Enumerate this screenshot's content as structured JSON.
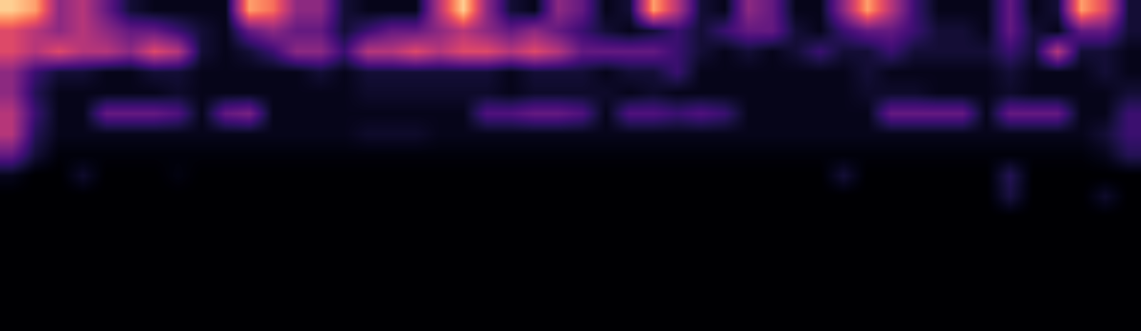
{
  "chart_data": {
    "type": "heatmap",
    "tick_labels": false,
    "clim": [
      0,
      1
    ],
    "cells": [
      [
        0.9,
        0.8,
        0.4,
        0.5,
        0.3,
        0.1,
        0.05,
        0.05,
        0.05,
        0.05,
        0.8,
        0.7,
        0.4,
        0.4,
        0.1,
        0.05,
        0.05,
        0.05,
        0.5,
        0.9,
        0.4,
        0.1,
        0.05,
        0.4,
        0.3,
        0.05,
        0.1,
        0.8,
        0.5,
        0.1,
        0.05,
        0.4,
        0.3,
        0.05,
        0.05,
        0.4,
        0.8,
        0.5,
        0.2,
        0.05,
        0.05,
        0.05,
        0.3,
        0.05,
        0.1,
        0.8,
        0.6,
        0.1
      ],
      [
        0.6,
        0.5,
        0.4,
        0.5,
        0.4,
        0.3,
        0.3,
        0.2,
        0.1,
        0.05,
        0.3,
        0.4,
        0.3,
        0.3,
        0.1,
        0.2,
        0.3,
        0.3,
        0.4,
        0.5,
        0.4,
        0.3,
        0.4,
        0.3,
        0.2,
        0.1,
        0.05,
        0.1,
        0.2,
        0.1,
        0.2,
        0.3,
        0.3,
        0.1,
        0.05,
        0.2,
        0.3,
        0.3,
        0.2,
        0.1,
        0.1,
        0.05,
        0.3,
        0.1,
        0.05,
        0.3,
        0.3,
        0.1
      ],
      [
        0.6,
        0.5,
        0.6,
        0.5,
        0.5,
        0.4,
        0.6,
        0.5,
        0.1,
        0.05,
        0.1,
        0.2,
        0.4,
        0.4,
        0.2,
        0.5,
        0.5,
        0.6,
        0.5,
        0.6,
        0.6,
        0.5,
        0.6,
        0.5,
        0.3,
        0.3,
        0.3,
        0.3,
        0.2,
        0.1,
        0.05,
        0.1,
        0.05,
        0.1,
        0.2,
        0.1,
        0.1,
        0.2,
        0.1,
        0.1,
        0.1,
        0.1,
        0.2,
        0.1,
        0.5,
        0.1,
        0.1,
        0.05
      ],
      [
        0.4,
        0.2,
        0.1,
        0.1,
        0.05,
        0.05,
        0.1,
        0.1,
        0.05,
        0.05,
        0.05,
        0.05,
        0.05,
        0.1,
        0.05,
        0.1,
        0.1,
        0.1,
        0.1,
        0.1,
        0.1,
        0.05,
        0.1,
        0.1,
        0.1,
        0.05,
        0.1,
        0.1,
        0.2,
        0.05,
        0.05,
        0.05,
        0.05,
        0.05,
        0.05,
        0.05,
        0.1,
        0.05,
        0.05,
        0.05,
        0.05,
        0.05,
        0.1,
        0.05,
        0.05,
        0.05,
        0.1,
        0.05
      ],
      [
        0.4,
        0.15,
        0.05,
        0.05,
        0.05,
        0.05,
        0.05,
        0.08,
        0.05,
        0.05,
        0.05,
        0.05,
        0.05,
        0.05,
        0.05,
        0.08,
        0.08,
        0.08,
        0.08,
        0.08,
        0.08,
        0.05,
        0.08,
        0.08,
        0.08,
        0.08,
        0.05,
        0.08,
        0.05,
        0.05,
        0.05,
        0.05,
        0.05,
        0.05,
        0.05,
        0.05,
        0.08,
        0.08,
        0.08,
        0.05,
        0.05,
        0.05,
        0.08,
        0.05,
        0.05,
        0.05,
        0.05,
        0.1
      ],
      [
        0.5,
        0.2,
        0.05,
        0.05,
        0.3,
        0.3,
        0.3,
        0.25,
        0.05,
        0.3,
        0.35,
        0.05,
        0.05,
        0.05,
        0.05,
        0.05,
        0.05,
        0.05,
        0.05,
        0.05,
        0.25,
        0.25,
        0.3,
        0.3,
        0.25,
        0.05,
        0.25,
        0.25,
        0.2,
        0.25,
        0.2,
        0.05,
        0.05,
        0.05,
        0.05,
        0.05,
        0.05,
        0.3,
        0.3,
        0.3,
        0.3,
        0.05,
        0.3,
        0.3,
        0.3,
        0.05,
        0.05,
        0.2
      ],
      [
        0.5,
        0.15,
        0.05,
        0.05,
        0.05,
        0.05,
        0.05,
        0.05,
        0.05,
        0.05,
        0.05,
        0.05,
        0.05,
        0.05,
        0.05,
        0.08,
        0.08,
        0.08,
        0.05,
        0.05,
        0.05,
        0.05,
        0.05,
        0.05,
        0.05,
        0.05,
        0.05,
        0.05,
        0.05,
        0.05,
        0.05,
        0.05,
        0.05,
        0.05,
        0.05,
        0.05,
        0.05,
        0.05,
        0.05,
        0.05,
        0.05,
        0.05,
        0.05,
        0.05,
        0.05,
        0.05,
        0.1,
        0.2
      ],
      [
        0.3,
        0.1,
        0.02,
        0.02,
        0.02,
        0.02,
        0.02,
        0.02,
        0.02,
        0.02,
        0.02,
        0.02,
        0.02,
        0.02,
        0.02,
        0.02,
        0.02,
        0.02,
        0.02,
        0.02,
        0.02,
        0.02,
        0.02,
        0.02,
        0.02,
        0.02,
        0.02,
        0.02,
        0.02,
        0.02,
        0.02,
        0.02,
        0.02,
        0.02,
        0.02,
        0.02,
        0.02,
        0.02,
        0.02,
        0.02,
        0.02,
        0.02,
        0.02,
        0.02,
        0.02,
        0.02,
        0.05,
        0.15
      ],
      [
        0.05,
        0,
        0,
        0.08,
        0,
        0,
        0,
        0.03,
        0,
        0,
        0,
        0,
        0,
        0,
        0,
        0,
        0,
        0,
        0,
        0,
        0,
        0,
        0,
        0,
        0,
        0,
        0,
        0,
        0,
        0,
        0,
        0,
        0,
        0,
        0,
        0.1,
        0,
        0,
        0,
        0,
        0,
        0,
        0.15,
        0,
        0,
        0,
        0,
        0
      ],
      [
        0,
        0,
        0,
        0,
        0,
        0,
        0,
        0,
        0,
        0,
        0,
        0,
        0,
        0,
        0,
        0,
        0,
        0,
        0,
        0,
        0,
        0,
        0,
        0,
        0,
        0,
        0,
        0,
        0,
        0,
        0,
        0,
        0,
        0,
        0,
        0,
        0,
        0,
        0,
        0,
        0,
        0,
        0.12,
        0,
        0,
        0,
        0.08,
        0
      ],
      [
        0,
        0,
        0,
        0,
        0,
        0,
        0,
        0,
        0,
        0,
        0,
        0,
        0,
        0,
        0,
        0,
        0,
        0,
        0,
        0,
        0,
        0,
        0,
        0,
        0,
        0,
        0,
        0,
        0,
        0,
        0,
        0,
        0,
        0,
        0,
        0,
        0,
        0,
        0,
        0,
        0,
        0,
        0,
        0,
        0,
        0,
        0,
        0
      ],
      [
        0,
        0,
        0,
        0,
        0,
        0,
        0,
        0,
        0,
        0,
        0,
        0,
        0,
        0,
        0,
        0,
        0,
        0,
        0,
        0,
        0,
        0,
        0,
        0,
        0,
        0,
        0,
        0,
        0,
        0,
        0,
        0,
        0,
        0,
        0,
        0,
        0,
        0,
        0,
        0,
        0,
        0,
        0,
        0,
        0,
        0,
        0,
        0
      ],
      [
        0,
        0,
        0,
        0,
        0,
        0,
        0,
        0,
        0,
        0,
        0,
        0,
        0,
        0,
        0,
        0,
        0,
        0,
        0,
        0,
        0,
        0,
        0,
        0,
        0,
        0,
        0,
        0,
        0,
        0,
        0,
        0,
        0,
        0,
        0,
        0,
        0,
        0,
        0,
        0,
        0,
        0,
        0,
        0,
        0,
        0,
        0,
        0
      ],
      [
        0,
        0,
        0,
        0,
        0,
        0,
        0,
        0,
        0,
        0,
        0,
        0,
        0,
        0,
        0,
        0,
        0,
        0,
        0,
        0,
        0,
        0,
        0,
        0,
        0,
        0,
        0,
        0,
        0,
        0,
        0,
        0,
        0,
        0,
        0,
        0,
        0,
        0,
        0,
        0,
        0,
        0,
        0,
        0,
        0,
        0,
        0,
        0
      ],
      [
        0,
        0,
        0,
        0,
        0,
        0,
        0,
        0,
        0,
        0,
        0,
        0,
        0,
        0,
        0,
        0,
        0,
        0,
        0,
        0,
        0,
        0,
        0,
        0,
        0,
        0,
        0,
        0,
        0,
        0,
        0,
        0,
        0,
        0,
        0,
        0,
        0,
        0,
        0,
        0,
        0,
        0,
        0,
        0,
        0,
        0,
        0,
        0
      ],
      [
        0,
        0,
        0,
        0,
        0,
        0,
        0,
        0,
        0,
        0,
        0,
        0,
        0,
        0,
        0,
        0,
        0,
        0,
        0,
        0,
        0,
        0,
        0,
        0,
        0,
        0,
        0,
        0,
        0,
        0,
        0,
        0,
        0,
        0,
        0,
        0,
        0,
        0,
        0,
        0,
        0,
        0,
        0,
        0,
        0,
        0,
        0,
        0
      ]
    ]
  }
}
